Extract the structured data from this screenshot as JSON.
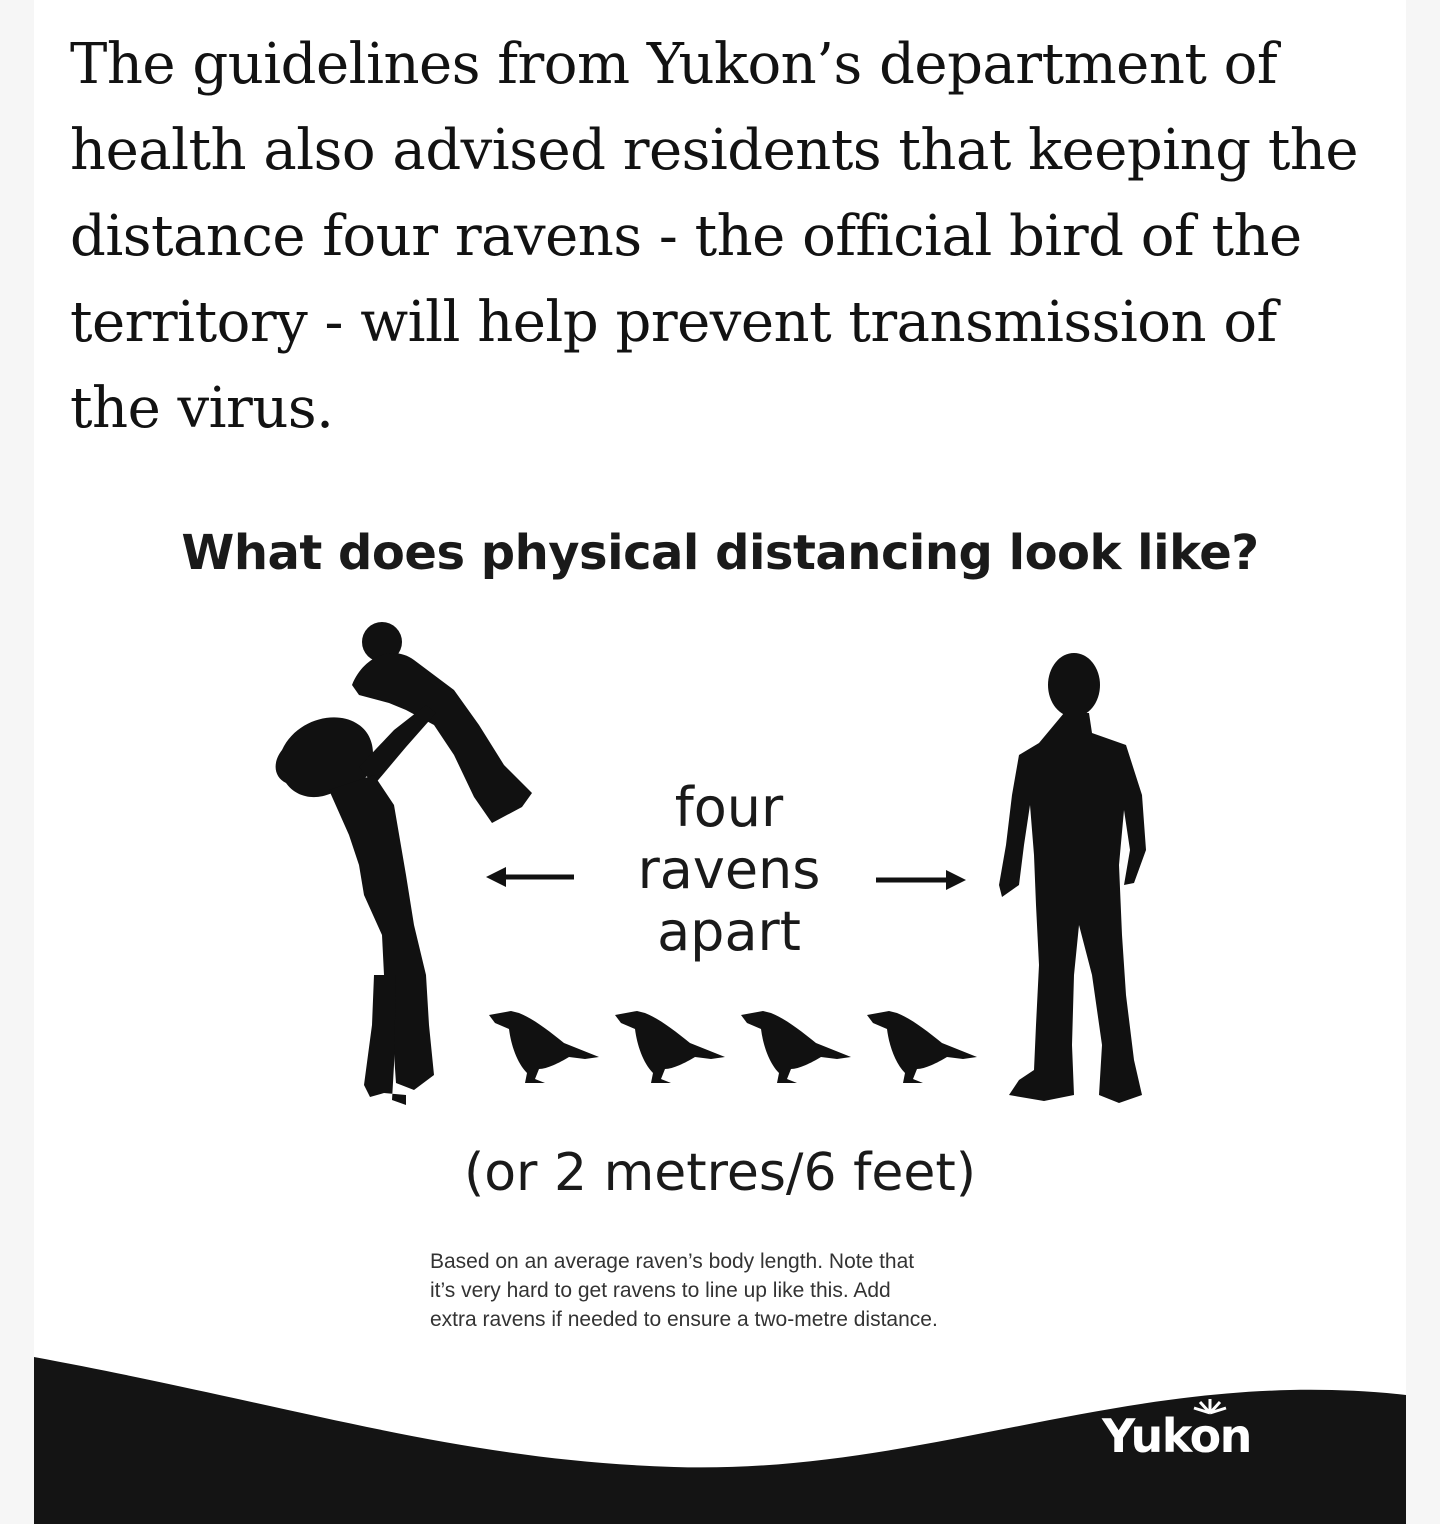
{
  "article": {
    "paragraph": "The guidelines from Yukon’s department of health also advised residents that keeping the distance four ravens - the official bird of the territory - will help prevent transmission of the virus."
  },
  "infographic": {
    "title": "What does physical distancing look like?",
    "center_label": {
      "line1": "four",
      "line2": "ravens",
      "line3": "apart"
    },
    "equivalent": "(or 2 metres/6 feet)",
    "footnote": {
      "line1": "Based on an average raven’s body length. Note that",
      "line2": "it’s very hard to get ravens to line up like this. Add",
      "line3": "extra ravens if needed to ensure a two-metre distance."
    },
    "brand": "Yukon",
    "raven_count": 4
  },
  "icons": [
    "adult-with-child-silhouette-icon",
    "man-silhouette-icon",
    "raven-icon",
    "left-arrow-icon",
    "right-arrow-icon",
    "yukon-sun-logo-icon"
  ],
  "colors": {
    "silhouette": "#111111",
    "banner": "#141414",
    "text": "#121212",
    "background": "#ffffff",
    "page": "#f6f6f6"
  }
}
